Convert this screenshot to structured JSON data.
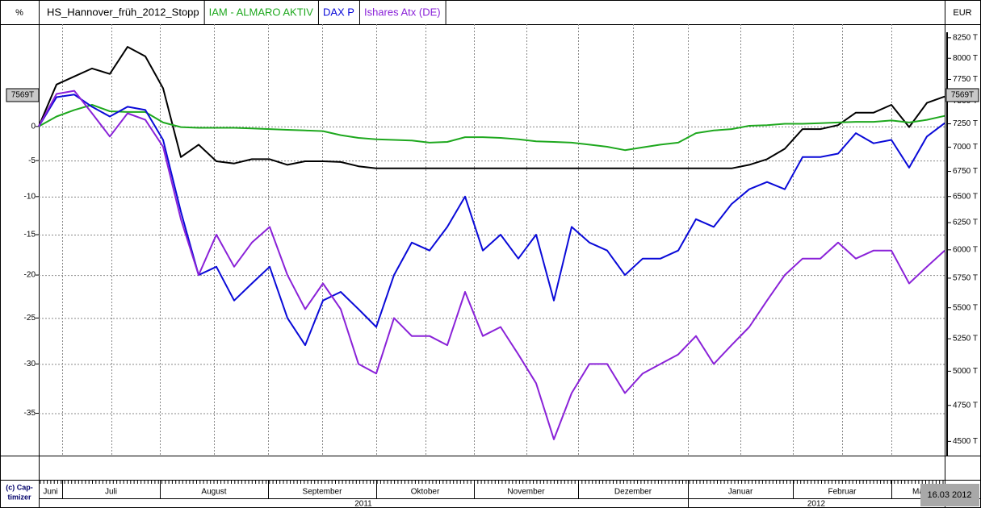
{
  "chart_data": {
    "type": "line",
    "left_axis_label": "%",
    "right_axis_label": "EUR",
    "log_scale": true,
    "grid": true,
    "ylim": [
      -39,
      16.6
    ],
    "yticks": [
      0,
      -5,
      -10,
      -15,
      -20,
      -25,
      -30,
      -35
    ],
    "y2lim": [
      4405,
      8420
    ],
    "y2ticks": [
      {
        "value": 8250,
        "label": "8250 T"
      },
      {
        "value": 8000,
        "label": "8000 T"
      },
      {
        "value": 7750,
        "label": "7750 T"
      },
      {
        "value": 7500,
        "label": "7500 T"
      },
      {
        "value": 7250,
        "label": "7250 T"
      },
      {
        "value": 7000,
        "label": "7000 T"
      },
      {
        "value": 6750,
        "label": "6750 T"
      },
      {
        "value": 6500,
        "label": "6500 T"
      },
      {
        "value": 6250,
        "label": "6250 T"
      },
      {
        "value": 6000,
        "label": "6000 T"
      },
      {
        "value": 5750,
        "label": "5750 T"
      },
      {
        "value": 5500,
        "label": "5500 T"
      },
      {
        "value": 5250,
        "label": "5250 T"
      },
      {
        "value": 5000,
        "label": "5000 T"
      },
      {
        "value": 4750,
        "label": "4750 T"
      },
      {
        "value": 4500,
        "label": "4500 T"
      }
    ],
    "current_marker": {
      "value": 7569,
      "label": "7569T"
    },
    "months": [
      "Juni",
      "Juli",
      "August",
      "September",
      "Oktober",
      "November",
      "Dezember",
      "Januar",
      "Februar",
      "Mä"
    ],
    "years": [
      "2011",
      "2012"
    ],
    "end_label": "16.03 2012",
    "copyright": [
      "(c) Cap-",
      "timizer"
    ],
    "series": [
      {
        "name": "HS_Hannover_früh_2012_Stopp",
        "color": "#000000",
        "values": [
          0,
          6.5,
          7.8,
          9.1,
          8.2,
          12.7,
          11.1,
          5.9,
          -4.5,
          -2.7,
          -5.1,
          -5.4,
          -4.8,
          -4.8,
          -5.6,
          -5.1,
          -5.1,
          -5.2,
          -5.8,
          -6.1,
          -6.1,
          -6.1,
          -6.1,
          -6.1,
          -6.1,
          -6.1,
          -6.1,
          -6.1,
          -6.1,
          -6.1,
          -6.1,
          -6.1,
          -6.1,
          -6.1,
          -6.1,
          -6.1,
          -6.1,
          -6.1,
          -6.1,
          -6.1,
          -5.6,
          -4.8,
          -3.3,
          -0.4,
          -0.4,
          0.2,
          2.1,
          2.1,
          3.3,
          -0.1,
          3.6,
          4.6
        ]
      },
      {
        "name": "IAM - ALMARO AKTIV",
        "color": "#1ea81e",
        "values": [
          0,
          1.5,
          2.5,
          3.3,
          2.3,
          2.2,
          2.2,
          0.6,
          -0.1,
          -0.2,
          -0.2,
          -0.2,
          -0.3,
          -0.4,
          -0.5,
          -0.6,
          -0.7,
          -1.3,
          -1.7,
          -1.9,
          -2.0,
          -2.1,
          -2.4,
          -2.3,
          -1.6,
          -1.6,
          -1.7,
          -1.9,
          -2.2,
          -2.3,
          -2.4,
          -2.7,
          -3.0,
          -3.5,
          -3.1,
          -2.7,
          -2.4,
          -1.0,
          -0.6,
          -0.4,
          0.1,
          0.2,
          0.4,
          0.4,
          0.5,
          0.6,
          0.7,
          0.7,
          0.9,
          0.6,
          1.0,
          1.6
        ]
      },
      {
        "name": "DAX P",
        "color": "#0a0ad8",
        "values": [
          0,
          4.5,
          4.9,
          3.0,
          1.5,
          3.0,
          2.5,
          -2,
          -12,
          -20,
          -19,
          -23,
          -21,
          -19,
          -25,
          -28,
          -23,
          -22,
          -24,
          -26,
          -20,
          -16,
          -17,
          -14,
          -10,
          -17,
          -15,
          -18,
          -15,
          -23,
          -14,
          -16,
          -17,
          -20,
          -18,
          -18,
          -17,
          -13,
          -14,
          -11,
          -9,
          -8,
          -9,
          -4.5,
          -4.5,
          -4,
          -1,
          -2.5,
          -2,
          -6,
          -1.5,
          0.5
        ]
      },
      {
        "name": "Ishares Atx (DE)",
        "color": "#8a22d8",
        "values": [
          0,
          5,
          5.5,
          2,
          -1.5,
          2,
          1,
          -3,
          -13,
          -20,
          -15,
          -19,
          -16,
          -14,
          -20,
          -24,
          -21,
          -24,
          -30,
          -31,
          -25,
          -27,
          -27,
          -28,
          -22,
          -27,
          -26,
          -29,
          -32,
          -37.5,
          -33,
          -30,
          -30,
          -33,
          -31,
          -30,
          -29,
          -27,
          -30,
          -28,
          -26,
          -23,
          -20,
          -18,
          -18,
          -16,
          -18,
          -17,
          -17,
          -21,
          -19,
          -17
        ]
      }
    ]
  }
}
